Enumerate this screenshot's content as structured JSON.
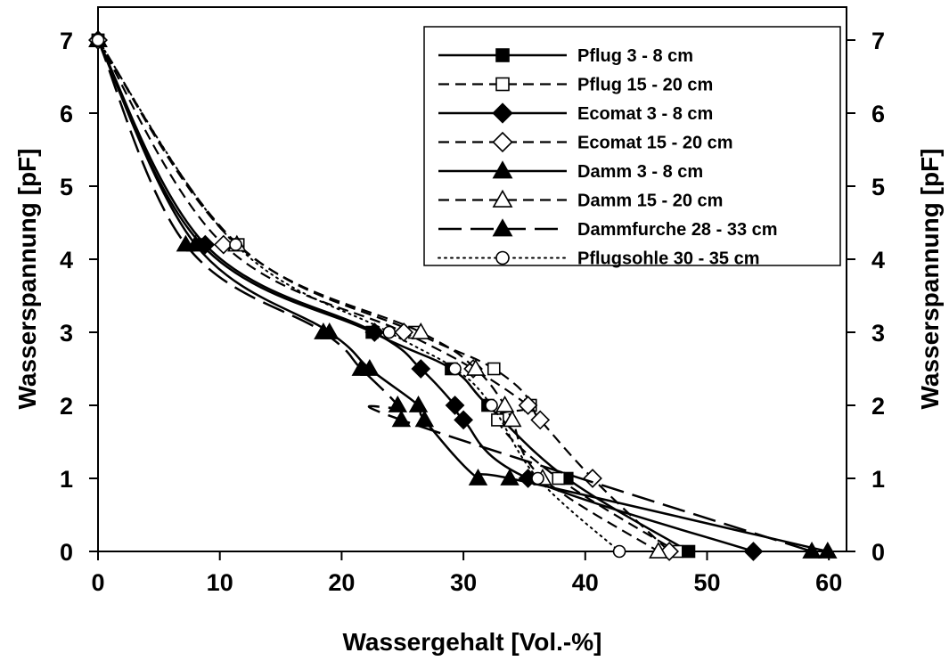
{
  "chart_data": {
    "type": "line",
    "xlabel": "Wassergehalt [Vol.-%]",
    "ylabel": "Wasserspannung [pF]",
    "ylabel_right": "Wasserspannung [pF]",
    "xlim": [
      0,
      62
    ],
    "ylim": [
      0,
      7
    ],
    "x_ticks": [
      "0",
      "10",
      "20",
      "30",
      "40",
      "50",
      "60"
    ],
    "y_ticks": [
      "0",
      "1",
      "2",
      "3",
      "4",
      "5",
      "6",
      "7"
    ],
    "grid": false,
    "legend_position": "top-right",
    "series": [
      {
        "name": "Pflug 3 - 8 cm",
        "marker": "square",
        "filled": true,
        "dash": "solid",
        "points": [
          [
            0,
            7
          ],
          [
            8.5,
            4.2
          ],
          [
            22.5,
            3
          ],
          [
            29,
            2.5
          ],
          [
            32,
            2
          ],
          [
            38.5,
            1
          ],
          [
            48.5,
            0
          ]
        ]
      },
      {
        "name": "Pflug 15 - 20 cm",
        "marker": "square",
        "filled": false,
        "dash": "dashed",
        "points": [
          [
            0,
            7
          ],
          [
            11.5,
            4.2
          ],
          [
            26,
            3
          ],
          [
            32.5,
            2.5
          ],
          [
            35.5,
            2
          ],
          [
            32.8,
            1.8
          ],
          [
            37.8,
            1
          ],
          [
            47.5,
            0
          ]
        ]
      },
      {
        "name": "Ecomat 3 - 8 cm",
        "marker": "diamond",
        "filled": true,
        "dash": "solid",
        "points": [
          [
            0,
            7
          ],
          [
            8.8,
            4.2
          ],
          [
            22.7,
            3
          ],
          [
            26.5,
            2.5
          ],
          [
            29.3,
            2
          ],
          [
            30,
            1.8
          ],
          [
            35.3,
            1
          ],
          [
            53.8,
            0
          ]
        ]
      },
      {
        "name": "Ecomat 15 - 20 cm",
        "marker": "diamond",
        "filled": false,
        "dash": "dashed",
        "points": [
          [
            0,
            7
          ],
          [
            10.3,
            4.2
          ],
          [
            25.1,
            3
          ],
          [
            30.8,
            2.5
          ],
          [
            35.3,
            2
          ],
          [
            36.3,
            1.8
          ],
          [
            40.6,
            1
          ],
          [
            46.9,
            0
          ]
        ]
      },
      {
        "name": "Damm 3 - 8 cm",
        "marker": "triangle",
        "filled": true,
        "dash": "solid",
        "points": [
          [
            0,
            7
          ],
          [
            8,
            4.2
          ],
          [
            19,
            3
          ],
          [
            22.3,
            2.5
          ],
          [
            26.3,
            2
          ],
          [
            26.8,
            1.8
          ],
          [
            31.2,
            1
          ],
          [
            33.8,
            1
          ],
          [
            59.9,
            0
          ]
        ]
      },
      {
        "name": "Damm 15 - 20 cm",
        "marker": "triangle",
        "filled": false,
        "dash": "dashed",
        "points": [
          [
            0,
            7
          ],
          [
            11.4,
            4.2
          ],
          [
            26.5,
            3
          ],
          [
            31,
            2.5
          ],
          [
            33.4,
            2
          ],
          [
            34,
            1.8
          ],
          [
            36.5,
            1
          ],
          [
            46,
            0
          ]
        ]
      },
      {
        "name": "Dammfurche 28 - 33 cm",
        "marker": "triangle",
        "filled": true,
        "dash": "longdash",
        "points": [
          [
            0,
            7
          ],
          [
            7.2,
            4.2
          ],
          [
            18.5,
            3
          ],
          [
            21.6,
            2.5
          ],
          [
            24.6,
            2
          ],
          [
            24.9,
            1.8
          ],
          [
            58.6,
            0
          ]
        ]
      },
      {
        "name": "Pflugsohle 30 - 35 cm",
        "marker": "circle",
        "filled": false,
        "dash": "dotted",
        "points": [
          [
            0,
            7
          ],
          [
            11.3,
            4.2
          ],
          [
            23.9,
            3
          ],
          [
            29.3,
            2.5
          ],
          [
            32.3,
            2
          ],
          [
            36.1,
            1
          ],
          [
            42.8,
            0
          ]
        ]
      }
    ]
  }
}
